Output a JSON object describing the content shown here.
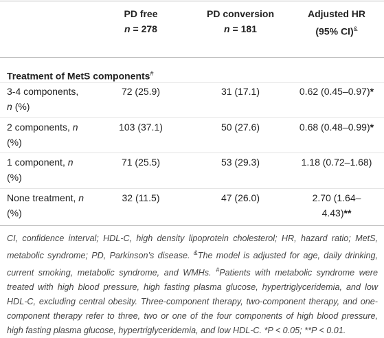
{
  "table": {
    "columns": [
      {
        "name": "PD free",
        "count_label": "n",
        "count": "= 278"
      },
      {
        "name": "PD conversion",
        "count_label": "n",
        "count": "= 181"
      },
      {
        "name": "Adjusted HR (95% CI)",
        "note": "&"
      }
    ],
    "section": {
      "title": "Treatment of MetS components",
      "note": "#"
    },
    "rows": [
      {
        "label": [
          "3-4 components,",
          "n",
          "(%)"
        ],
        "cells": [
          "72 (25.9)",
          "31 (17.1)",
          "0.62 (0.45–0.97)"
        ],
        "marker": "*"
      },
      {
        "label": [
          "2 components,",
          "n",
          "(%)"
        ],
        "cells": [
          "103 (37.1)",
          "50 (27.6)",
          "0.68 (0.48–0.99)"
        ],
        "marker": "*"
      },
      {
        "label": [
          "1 component,",
          "n",
          "(%)"
        ],
        "cells": [
          "71 (25.5)",
          "53 (29.3)",
          "1.18 (0.72–1.68)"
        ],
        "marker": null
      },
      {
        "label": [
          "None treatment,",
          "n",
          "(%)"
        ],
        "cells": [
          "32 (11.5)",
          "47 (26.0)",
          "2.70 (1.64–4.43)"
        ],
        "marker": "**"
      }
    ]
  },
  "footnote": [
    "CI, confidence interval; HDL-C, high density lipoprotein cholesterol; HR, hazard ratio; MetS, metabolic syndrome; PD, Parkinson’s disease. ",
    "&",
    "The model is adjusted for age, daily drinking, current smoking, metabolic syndrome, and WMHs. ",
    "#",
    "Patients with metabolic syndrome were treated with high blood pressure, high fasting plasma glucose, hypertriglyceridemia, and low HDL-C, excluding central obesity. Three-component therapy, two-component therapy, and one-component therapy refer to three, two or one of the four components of high blood pressure, high fasting plasma glucose, hypertriglyceridemia, and low HDL-C. *P < 0.05; **P < 0.01."
  ]
}
